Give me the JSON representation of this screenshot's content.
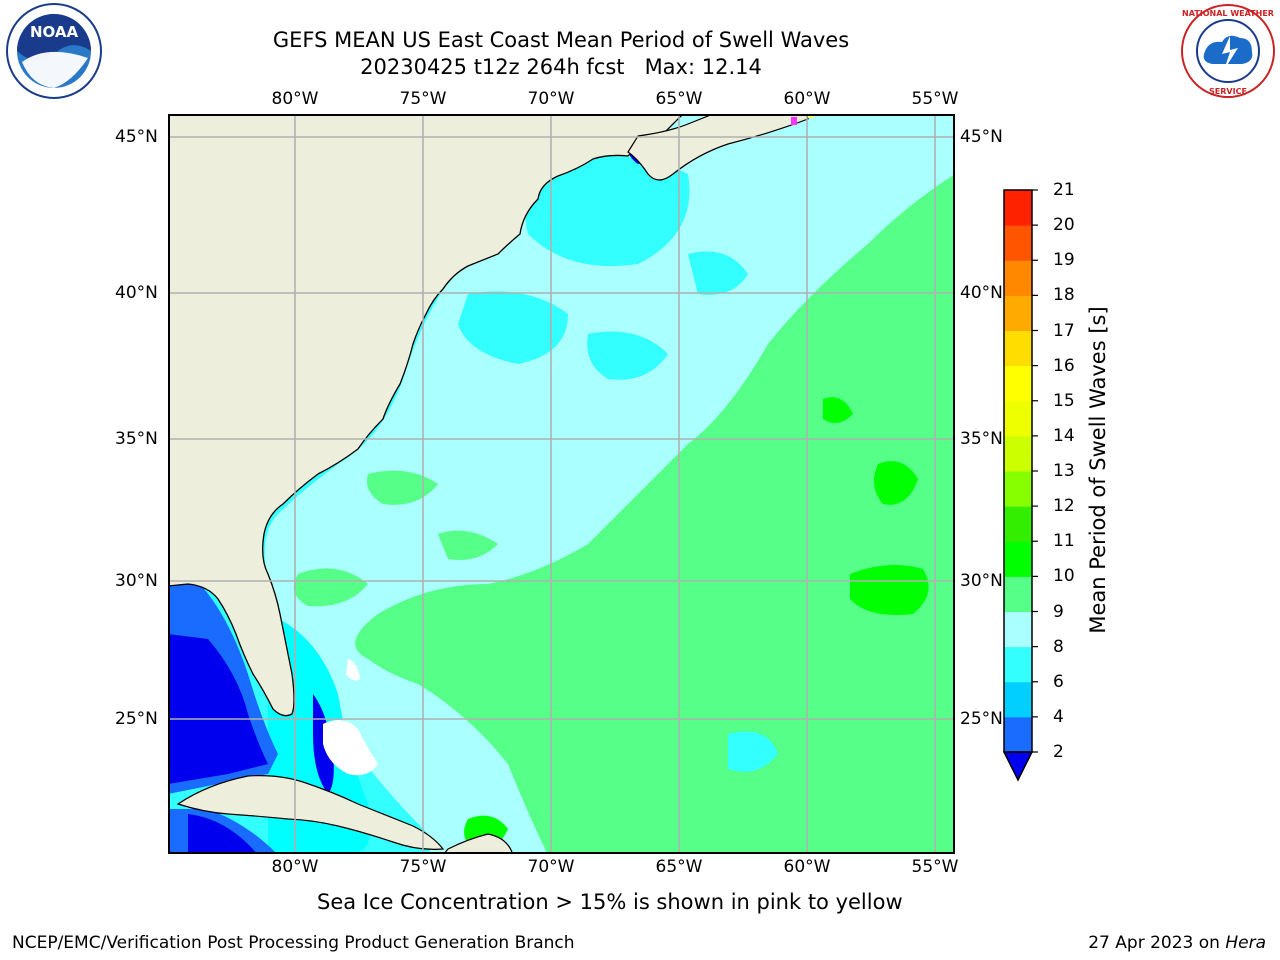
{
  "title": {
    "line1": "GEFS MEAN US East Coast Mean Period of Swell Waves",
    "line2": "20230425 t12z 264h fcst   Max: 12.14"
  },
  "map": {
    "lon_labels": [
      "80°W",
      "75°W",
      "70°W",
      "65°W",
      "60°W",
      "55°W"
    ],
    "lat_labels": [
      "45°N",
      "40°N",
      "35°N",
      "30°N",
      "25°N"
    ],
    "land_color": "#eeeedc",
    "grid_color": "#b0b0b0"
  },
  "colorbar": {
    "title": "Mean Period of Swell Waves [s]",
    "ticks": [
      "2",
      "4",
      "6",
      "8",
      "9",
      "10",
      "11",
      "12",
      "13",
      "14",
      "15",
      "16",
      "17",
      "18",
      "19",
      "20",
      "21"
    ],
    "colors": [
      "#1a6cff",
      "#00cfff",
      "#33ffff",
      "#aaffff",
      "#55ff88",
      "#00ff00",
      "#33ee00",
      "#88ff00",
      "#ccff00",
      "#eeff00",
      "#ffff00",
      "#ffdd00",
      "#ffaa00",
      "#ff8800",
      "#ff5500",
      "#ff2200"
    ],
    "under_color": "#0000ee"
  },
  "note": "Sea Ice Concentration > 15% is shown in pink to yellow",
  "footer": {
    "left": "NCEP/EMC/Verification Post Processing Product Generation Branch",
    "date": "27 Apr 2023 on",
    "host": "Hera"
  },
  "logos": {
    "noaa": "NOAA",
    "nws": "NATIONAL WEATHER SERVICE"
  }
}
